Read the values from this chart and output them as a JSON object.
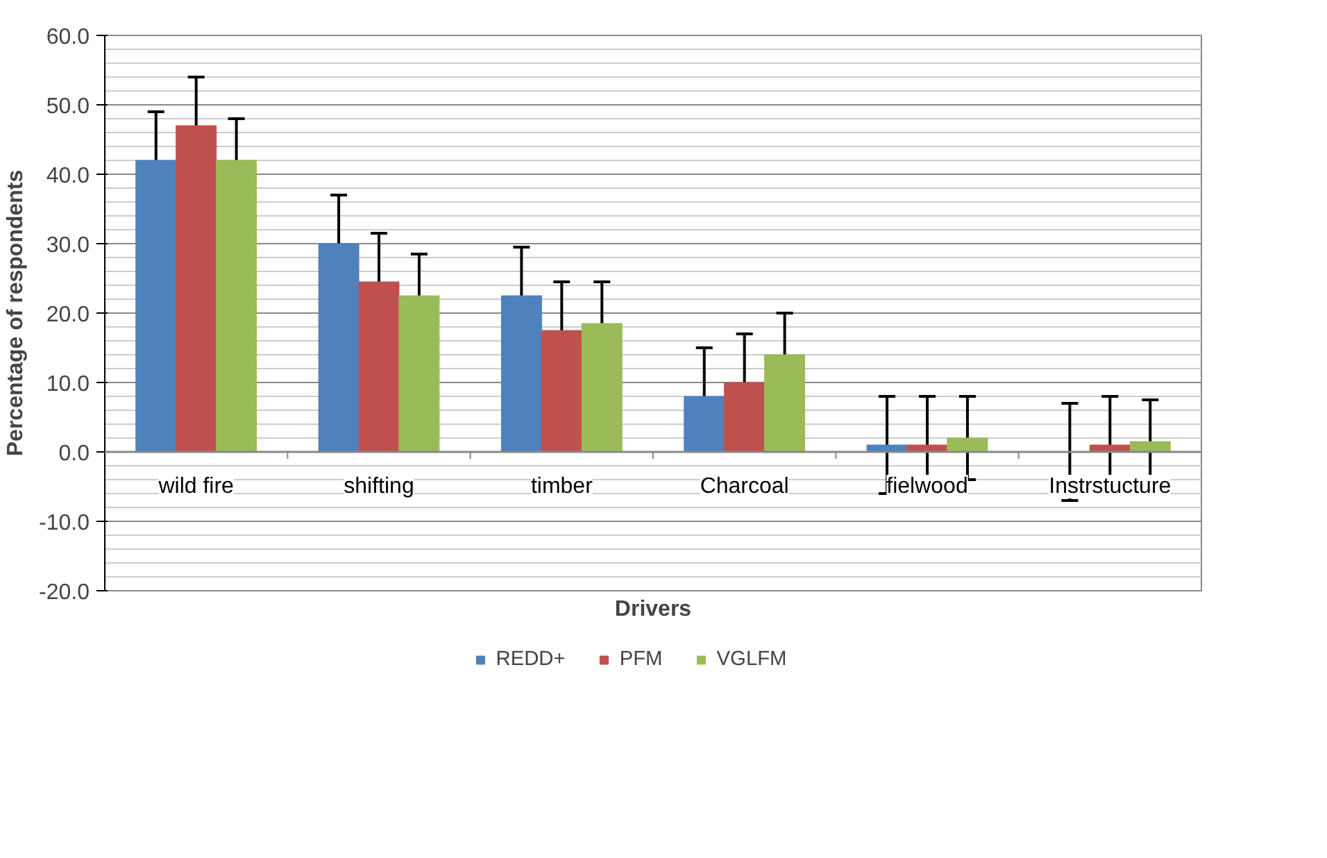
{
  "chart_data": {
    "type": "bar",
    "xlabel": "Drivers",
    "ylabel": "Percentage of respondents",
    "categories": [
      "wild fire",
      "shifting",
      "timber",
      "Charcoal",
      "fielwood",
      "Instrstucture"
    ],
    "series": [
      {
        "name": "REDD+",
        "color": "#4f81bd",
        "values": [
          42,
          30,
          22.5,
          8,
          1,
          0
        ],
        "errors": [
          7,
          7,
          7,
          7,
          7,
          7
        ]
      },
      {
        "name": "PFM",
        "color": "#c0504d",
        "values": [
          47,
          24.5,
          17.5,
          10,
          1,
          1
        ],
        "errors": [
          7,
          7,
          7,
          7,
          7,
          7
        ]
      },
      {
        "name": "VGLFM",
        "color": "#9bbb59",
        "values": [
          42,
          22.5,
          18.5,
          14,
          2,
          1.5
        ],
        "errors": [
          6,
          6,
          6,
          6,
          6,
          6
        ]
      }
    ],
    "ylim": [
      -20,
      60
    ],
    "yticks": [
      {
        "value": -20,
        "label": "-20.0"
      },
      {
        "value": -10,
        "label": "-10.0"
      },
      {
        "value": 0,
        "label": "0.0"
      },
      {
        "value": 10,
        "label": "10.0"
      },
      {
        "value": 20,
        "label": "20.0"
      },
      {
        "value": 30,
        "label": "30.0"
      },
      {
        "value": 40,
        "label": "40.0"
      },
      {
        "value": 50,
        "label": "50.0"
      },
      {
        "value": 60,
        "label": "60.0"
      }
    ],
    "grid": "y",
    "legend": "bottom"
  }
}
